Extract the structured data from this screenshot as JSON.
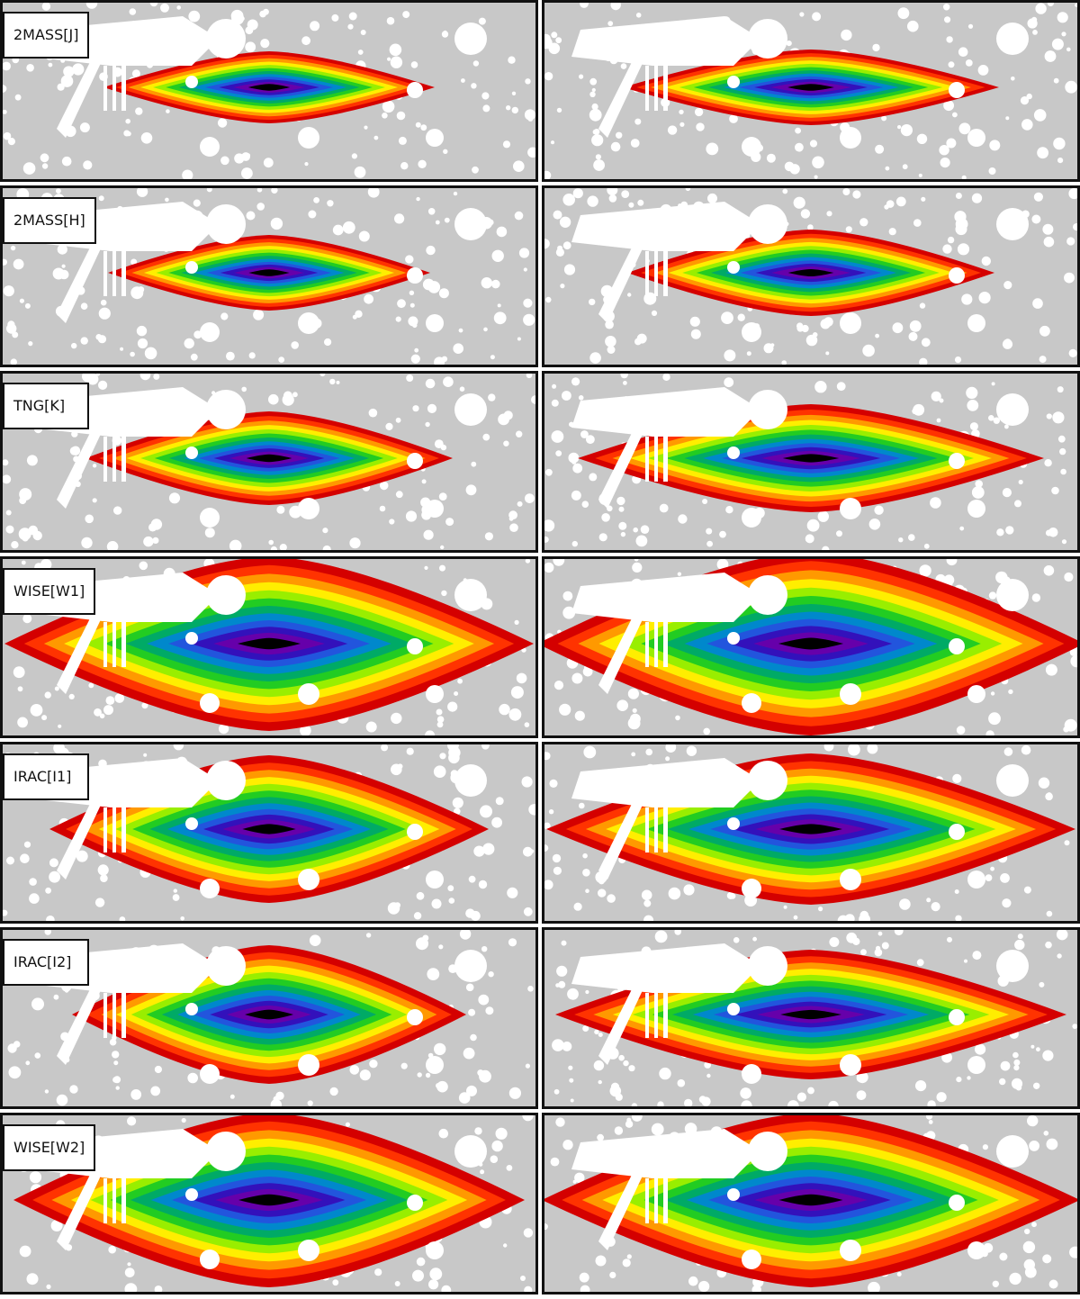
{
  "rows": [
    {
      "band": "2MASS[J]"
    },
    {
      "band": "2MASS[H]"
    },
    {
      "band": "TNG[K]"
    },
    {
      "band": "WISE[W1]"
    },
    {
      "band": "IRAC[I1]"
    },
    {
      "band": "IRAC[I2]"
    },
    {
      "band": "WISE[W2]"
    }
  ],
  "colors": {
    "background": "#c8c8c8",
    "mask": "#ffffff",
    "contours": [
      "#d40000",
      "#ff3300",
      "#ff9900",
      "#ffee00",
      "#99ee00",
      "#22cc22",
      "#00aa66",
      "#0088cc",
      "#2255dd",
      "#3311bb",
      "#6600aa",
      "#000000"
    ]
  }
}
